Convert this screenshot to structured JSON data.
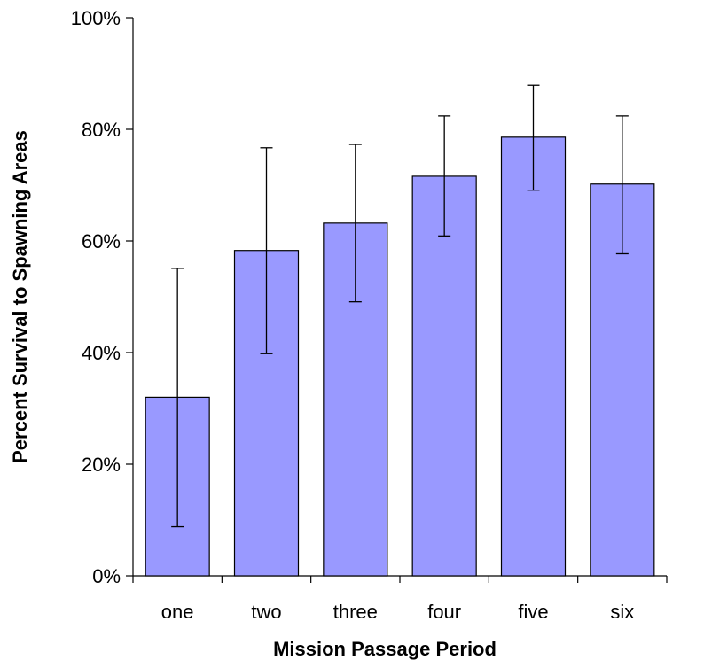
{
  "chart_data": {
    "type": "bar",
    "title": "",
    "xlabel": "Mission Passage Period",
    "ylabel": "Percent Survival to Spawning Areas",
    "categories": [
      "one",
      "two",
      "three",
      "four",
      "five",
      "six"
    ],
    "values": [
      32,
      58.3,
      63.2,
      71.6,
      78.6,
      70.2
    ],
    "error_low": [
      8.8,
      39.8,
      49.1,
      60.9,
      69.1,
      57.7
    ],
    "error_high": [
      55.1,
      76.7,
      77.3,
      82.4,
      87.9,
      82.4
    ],
    "ylim": [
      0,
      100
    ],
    "yticks": [
      0,
      20,
      40,
      60,
      80,
      100
    ],
    "ytick_labels": [
      "0%",
      "20%",
      "40%",
      "60%",
      "80%",
      "100%"
    ],
    "grid": false,
    "legend": "none",
    "bar_color": "#9999ff",
    "bar_edge_color": "#000000"
  }
}
